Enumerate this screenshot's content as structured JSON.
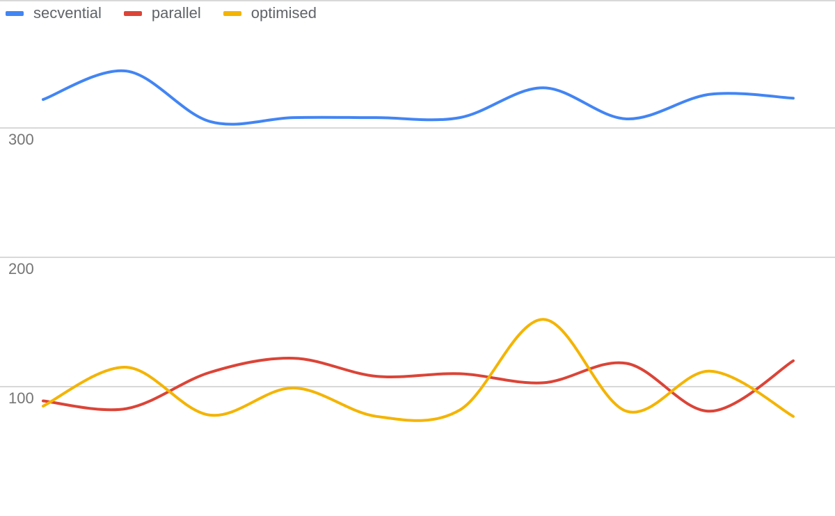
{
  "chart_data": {
    "type": "line",
    "title": "",
    "xlabel": "",
    "ylabel": "",
    "ylim": [
      0,
      400
    ],
    "yticks": [
      100,
      200,
      300
    ],
    "grid": true,
    "legend_position": "top-left",
    "smooth": true,
    "x": [
      1,
      2,
      3,
      4,
      5,
      6,
      7,
      8,
      9,
      10
    ],
    "series": [
      {
        "name": "secvential",
        "color": "#4285f4",
        "values": [
          322,
          344,
          305,
          308,
          308,
          308,
          331,
          307,
          326,
          323
        ]
      },
      {
        "name": "parallel",
        "color": "#db4437",
        "values": [
          89,
          83,
          111,
          122,
          108,
          110,
          103,
          118,
          81,
          120
        ]
      },
      {
        "name": "optimised",
        "color": "#f4b400",
        "values": [
          85,
          115,
          78,
          99,
          77,
          82,
          152,
          81,
          112,
          77
        ]
      }
    ]
  }
}
